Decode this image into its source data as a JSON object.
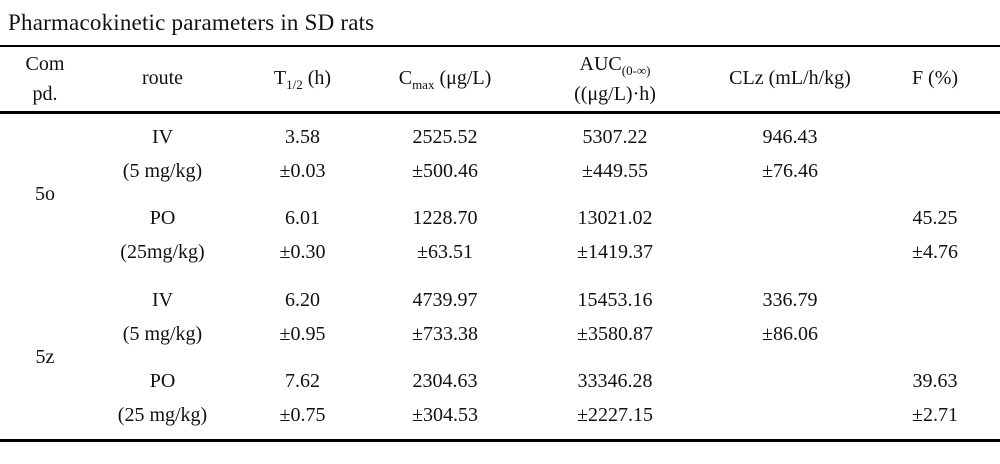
{
  "title": "Pharmacokinetic parameters in SD rats",
  "table": {
    "headers": {
      "compd_line1": "Com",
      "compd_line2": "pd.",
      "route": "route",
      "t12_base": "T",
      "t12_sub": "1/2",
      "t12_rest": " (h)",
      "cmax_base": "C",
      "cmax_sub": "max",
      "cmax_rest": " (μg/L)",
      "auc_base": "AUC",
      "auc_sub": "(0-∞)",
      "auc_line2": "((μg/L)·h)",
      "clz": "CLz (mL/h/kg)",
      "f": "F (%)"
    },
    "groups": [
      {
        "compound": "5o",
        "rows": [
          {
            "route": "IV",
            "dose": "(5 mg/kg)",
            "t12": "3.58",
            "t12_sd": "±0.03",
            "cmax": "2525.52",
            "cmax_sd": "±500.46",
            "auc": "5307.22",
            "auc_sd": "±449.55",
            "clz": "946.43",
            "clz_sd": "±76.46",
            "f": "",
            "f_sd": ""
          },
          {
            "route": "PO",
            "dose": "(25mg/kg)",
            "t12": "6.01",
            "t12_sd": "±0.30",
            "cmax": "1228.70",
            "cmax_sd": "±63.51",
            "auc": "13021.02",
            "auc_sd": "±1419.37",
            "clz": "",
            "clz_sd": "",
            "f": "45.25",
            "f_sd": "±4.76"
          }
        ]
      },
      {
        "compound": "5z",
        "rows": [
          {
            "route": "IV",
            "dose": "(5 mg/kg)",
            "t12": "6.20",
            "t12_sd": "±0.95",
            "cmax": "4739.97",
            "cmax_sd": "±733.38",
            "auc": "15453.16",
            "auc_sd": "±3580.87",
            "clz": "336.79",
            "clz_sd": "±86.06",
            "f": "",
            "f_sd": ""
          },
          {
            "route": "PO",
            "dose": "(25 mg/kg)",
            "t12": "7.62",
            "t12_sd": "±0.75",
            "cmax": "2304.63",
            "cmax_sd": "±304.53",
            "auc": "33346.28",
            "auc_sd": "±2227.15",
            "clz": "",
            "clz_sd": "",
            "f": "39.63",
            "f_sd": "±2.71"
          }
        ]
      }
    ]
  }
}
